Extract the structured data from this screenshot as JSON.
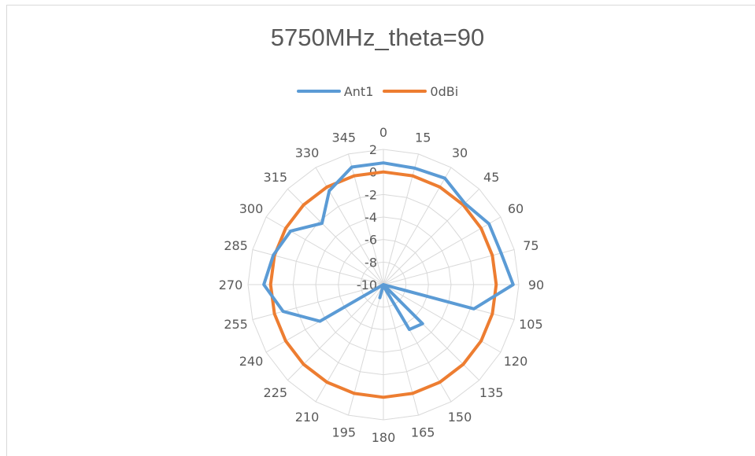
{
  "chart_data": {
    "type": "radar",
    "title": "5750MHz_theta=90",
    "legend_position": "top",
    "categories": [
      "0",
      "15",
      "30",
      "45",
      "60",
      "75",
      "90",
      "105",
      "120",
      "135",
      "150",
      "165",
      "180",
      "195",
      "210",
      "225",
      "240",
      "255",
      "270",
      "285",
      "300",
      "315",
      "330",
      "345"
    ],
    "radial_ticks": [
      "-10",
      "-8",
      "-6",
      "-4",
      "-2",
      "0",
      "2"
    ],
    "rlim": [
      -10,
      2
    ],
    "grid": true,
    "series": [
      {
        "name": "Ant1",
        "color": "#5b9bd5",
        "values": [
          0.8,
          0.7,
          0.9,
          0.2,
          0.8,
          0.8,
          1.5,
          -1.7,
          -10.0,
          -5.1,
          -5.4,
          -9.8,
          -10.0,
          -8.8,
          -10.0,
          -10.0,
          -3.5,
          -0.8,
          0.6,
          0.1,
          -0.5,
          -2.3,
          -0.4,
          0.8
        ]
      },
      {
        "name": "0dBi",
        "color": "#ed7d31",
        "values": [
          0,
          0,
          0,
          0,
          0,
          0,
          0,
          0,
          0,
          0,
          0,
          0,
          0,
          0,
          0,
          0,
          0,
          0,
          0,
          0,
          0,
          0,
          0,
          0
        ]
      }
    ]
  }
}
